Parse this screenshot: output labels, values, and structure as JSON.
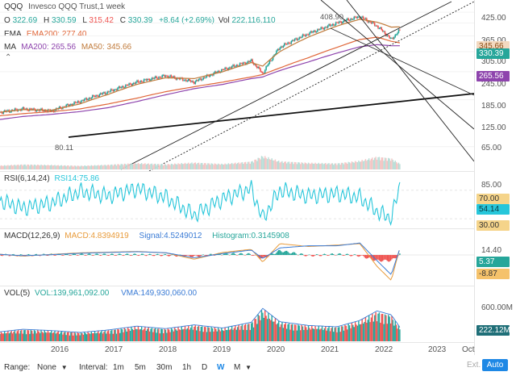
{
  "header": {
    "symbol": "QQQ",
    "name": "Invesco QQQ Trust,1 week",
    "o_label": "O",
    "o": "322.69",
    "h_label": "H",
    "h": "330.59",
    "l_label": "L",
    "l": "315.42",
    "c_label": "C",
    "c": "330.39",
    "chg": "+8.64 (+2.69%)",
    "vol_label": "Vol",
    "vol": "222,116,110",
    "ema_label": "EMA",
    "ema": "EMA200: 277.40",
    "ma_label": "MA",
    "ma200": "MA200: 265.56",
    "ma50": "MA50: 345.66"
  },
  "price_panel": {
    "annotations": {
      "high": "408.90",
      "low": "80.11"
    },
    "ticks": [
      "425.00",
      "365.00",
      "305.00",
      "245.00",
      "185.00",
      "125.00",
      "65.00"
    ],
    "tags": {
      "ma50": "345.66",
      "last": "330.39",
      "ma200": "265.56"
    }
  },
  "rsi_panel": {
    "title": "RSI(6,14,24)",
    "value": "RSI14:75.86",
    "ticks": [
      "85.00",
      "70.00",
      "54.14",
      "30.00"
    ]
  },
  "macd_panel": {
    "title": "MACD(12,26,9)",
    "macd": "MACD:4.8394919",
    "signal": "Signal:4.5249012",
    "histogram": "Histogram:0.3145908",
    "ticks": [
      "14.40",
      "5.37",
      "-8.87"
    ]
  },
  "vol_panel": {
    "title": "VOL(5)",
    "vol": "VOL:139,961,092.00",
    "vma": "VMA:149,930,060.00",
    "ticks": [
      "600.00M",
      "222.12M"
    ]
  },
  "x_axis": [
    "2016",
    "2017",
    "2018",
    "2019",
    "2020",
    "2021",
    "2022",
    "2023",
    "Oct"
  ],
  "toolbar": {
    "range_label": "Range:",
    "range_value": "None",
    "interval_label": "Interval:",
    "intervals": [
      "1m",
      "5m",
      "30m",
      "1h",
      "D",
      "W",
      "M"
    ],
    "active_interval": "W",
    "ext": "Ext.",
    "auto": "Auto"
  },
  "colors": {
    "up": "#26a69a",
    "down": "#ef5350",
    "ema": "#e0673a",
    "ma200": "#8e44ad",
    "ma50": "#c07a3a",
    "rsi": "#26c6da",
    "macd": "#e89b3b",
    "signal": "#3a7bd5",
    "accent": "#1e88e5"
  },
  "chart_data": [
    {
      "type": "line",
      "title": "QQQ Invesco QQQ Trust, 1 week",
      "x": [
        2015.6,
        2016.0,
        2016.5,
        2017.0,
        2017.5,
        2018.0,
        2018.5,
        2019.0,
        2019.5,
        2020.0,
        2020.2,
        2020.5,
        2021.0,
        2021.5,
        2021.9,
        2022.2,
        2022.45,
        2022.6
      ],
      "series": [
        {
          "name": "C",
          "values": [
            105,
            110,
            107,
            122,
            140,
            160,
            175,
            160,
            190,
            215,
            180,
            260,
            315,
            365,
            400,
            350,
            290,
            330
          ]
        },
        {
          "name": "EMA200",
          "values": [
            100,
            103,
            106,
            110,
            118,
            128,
            140,
            150,
            160,
            172,
            178,
            195,
            225,
            260,
            290,
            300,
            283,
            277
          ]
        },
        {
          "name": "MA200",
          "values": [
            95,
            99,
            102,
            106,
            112,
            122,
            134,
            146,
            155,
            168,
            172,
            188,
            212,
            240,
            262,
            270,
            266,
            266
          ]
        },
        {
          "name": "MA50",
          "values": [
            105,
            109,
            108,
            118,
            135,
            155,
            170,
            168,
            185,
            210,
            200,
            245,
            300,
            350,
            385,
            370,
            345,
            346
          ]
        }
      ],
      "ylim": [
        50,
        440
      ],
      "xlim": [
        2015.6,
        2023.9
      ],
      "annotations": [
        {
          "x": 2021.9,
          "y": 408.9,
          "text": "408.90"
        },
        {
          "x": 2016.1,
          "y": 80.11,
          "text": "80.11"
        }
      ]
    },
    {
      "type": "line",
      "title": "RSI(6,14,24)",
      "x": [
        2015.6,
        2016.0,
        2016.5,
        2017.0,
        2017.5,
        2018.0,
        2018.5,
        2019.0,
        2019.5,
        2020.0,
        2020.2,
        2020.5,
        2021.0,
        2021.5,
        2021.9,
        2022.2,
        2022.45,
        2022.6
      ],
      "series": [
        {
          "name": "RSI14",
          "values": [
            55,
            45,
            52,
            68,
            62,
            72,
            60,
            35,
            58,
            72,
            30,
            70,
            62,
            65,
            60,
            40,
            30,
            75.86
          ]
        }
      ],
      "ylim": [
        20,
        90
      ]
    },
    {
      "type": "line",
      "title": "MACD(12,26,9)",
      "x": [
        2015.6,
        2016.0,
        2016.5,
        2017.0,
        2017.5,
        2018.0,
        2018.5,
        2019.0,
        2019.5,
        2020.0,
        2020.2,
        2020.5,
        2021.0,
        2021.5,
        2021.9,
        2022.2,
        2022.45,
        2022.6
      ],
      "series": [
        {
          "name": "MACD",
          "values": [
            0.5,
            -0.8,
            0.4,
            1.5,
            2.0,
            2.5,
            1.5,
            -3.0,
            1.8,
            4.0,
            -5.0,
            8.0,
            6.0,
            7.0,
            8.0,
            -8.0,
            -18.0,
            4.84
          ]
        },
        {
          "name": "Signal",
          "values": [
            0.4,
            -0.5,
            0.2,
            1.2,
            1.8,
            2.3,
            1.6,
            -2.0,
            1.0,
            3.5,
            -2.5,
            5.0,
            6.5,
            6.5,
            8.5,
            -4.0,
            -14.0,
            4.52
          ]
        }
      ],
      "ylim": [
        -20,
        16
      ]
    },
    {
      "type": "bar",
      "title": "VOL(5)",
      "x": [
        2015.6,
        2016.0,
        2016.5,
        2017.0,
        2017.5,
        2018.0,
        2018.5,
        2019.0,
        2019.5,
        2020.0,
        2020.2,
        2020.5,
        2021.0,
        2021.5,
        2021.9,
        2022.2,
        2022.45,
        2022.6
      ],
      "values": [
        150,
        190,
        170,
        140,
        180,
        240,
        200,
        260,
        210,
        300,
        520,
        310,
        250,
        230,
        330,
        480,
        420,
        222
      ],
      "ylabel": "M",
      "ylim": [
        0,
        650
      ]
    }
  ]
}
